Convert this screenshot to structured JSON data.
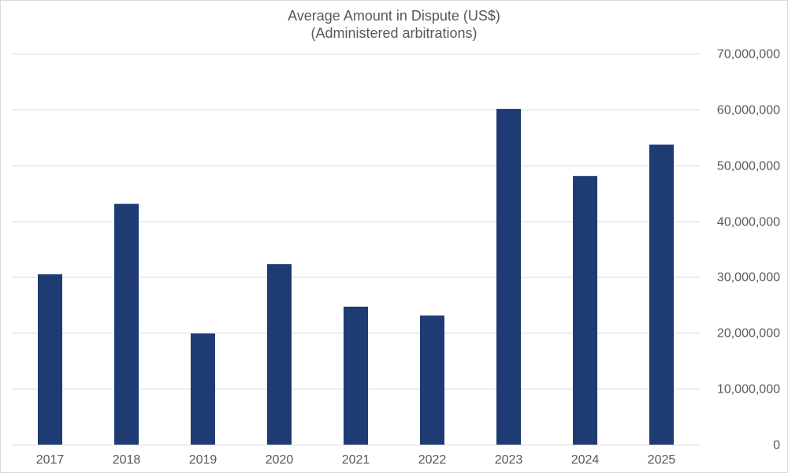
{
  "chart_data": {
    "type": "bar",
    "title": "Average Amount in Dispute (US$)",
    "subtitle": "(Administered arbitrations)",
    "xlabel": "",
    "ylabel": "",
    "categories": [
      "2017",
      "2018",
      "2019",
      "2020",
      "2021",
      "2022",
      "2023",
      "2024",
      "2025"
    ],
    "series": [
      {
        "name": "Average Amount in Dispute (US$)",
        "values": [
          30500000,
          43100000,
          19900000,
          32300000,
          24700000,
          23100000,
          60100000,
          48100000,
          53700000
        ]
      }
    ],
    "ylim": [
      0,
      70000000
    ],
    "y_ticks": [
      0,
      10000000,
      20000000,
      30000000,
      40000000,
      50000000,
      60000000,
      70000000
    ],
    "y_tick_labels": [
      "0",
      "10,000,000",
      "20,000,000",
      "30,000,000",
      "40,000,000",
      "50,000,000",
      "60,000,000",
      "70,000,000"
    ],
    "y_axis_side": "right",
    "grid": true,
    "legend": "none",
    "bar_color": "#1f3b73"
  }
}
